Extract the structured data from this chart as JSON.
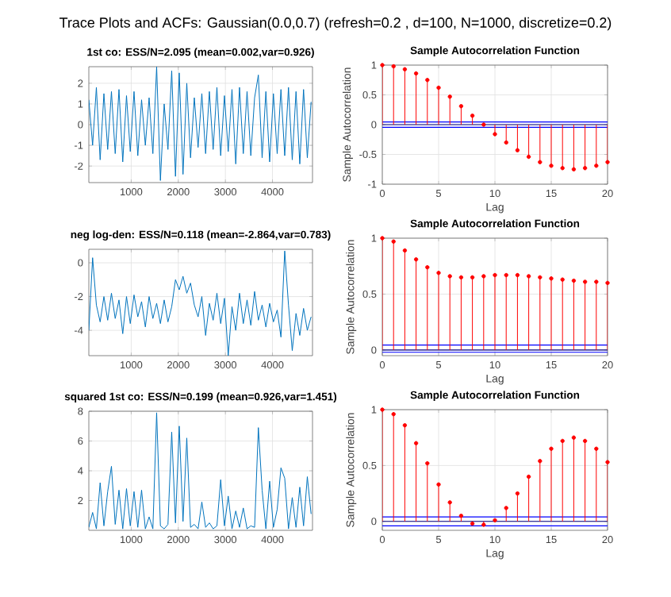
{
  "chart_data": [
    {
      "type": "line",
      "title": "1st co: ESS/N=2.095 (mean=0.002,var=0.926)",
      "annotations": [
        "Trace Plots and ACFs: Gaussian(0.0,0.7) (refresh=0.2 , d=100, N=1000, discretize=0.2)"
      ],
      "color": "#0072bd",
      "grid": true,
      "x": [
        100,
        180,
        260,
        340,
        420,
        500,
        580,
        660,
        740,
        820,
        900,
        980,
        1060,
        1140,
        1220,
        1300,
        1380,
        1460,
        1540,
        1620,
        1700,
        1780,
        1860,
        1940,
        2020,
        2100,
        2180,
        2260,
        2340,
        2420,
        2500,
        2580,
        2660,
        2740,
        2820,
        2900,
        2980,
        3060,
        3140,
        3220,
        3300,
        3380,
        3460,
        3540,
        3620,
        3700,
        3780,
        3860,
        3940,
        4020,
        4100,
        4180,
        4260,
        4340,
        4420,
        4500,
        4580,
        4660,
        4740,
        4820
      ],
      "values": [
        1.2,
        -1.0,
        1.8,
        -1.7,
        1.5,
        -1.2,
        1.6,
        -1.4,
        1.7,
        -1.8,
        1.4,
        -1.3,
        1.6,
        -1.5,
        1.2,
        -1.0,
        1.3,
        -1.4,
        2.8,
        -2.7,
        1.0,
        -1.2,
        2.6,
        -2.5,
        2.5,
        -2.4,
        2.0,
        -1.6,
        1.3,
        -1.1,
        1.5,
        -1.4,
        1.6,
        -1.2,
        1.8,
        -1.5,
        1.4,
        -1.3,
        1.7,
        -1.9,
        1.8,
        -1.4,
        1.6,
        -1.5,
        1.3,
        2.4,
        -1.6,
        1.6,
        -1.8,
        1.5,
        -1.4,
        1.7,
        -1.5,
        1.8,
        -1.7,
        1.6,
        -1.9,
        1.7,
        -1.6,
        1.1
      ],
      "xlim": [
        100,
        4850
      ],
      "xticks": [
        1000,
        2000,
        3000,
        4000
      ],
      "ylim": [
        -2.8,
        2.8
      ],
      "yticks": [
        -2,
        -1,
        0,
        1,
        2
      ]
    },
    {
      "type": "lollipop",
      "title": "Sample Autocorrelation Function",
      "xlabel": "Lag",
      "ylabel": "Sample Autocorrelation",
      "color": "#ff0000",
      "marker": "circle",
      "grid": true,
      "x": [
        0,
        1,
        2,
        3,
        4,
        5,
        6,
        7,
        8,
        9,
        10,
        11,
        12,
        13,
        14,
        15,
        16,
        17,
        18,
        19,
        20
      ],
      "values": [
        1,
        0.98,
        0.93,
        0.86,
        0.75,
        0.62,
        0.47,
        0.31,
        0.15,
        0.0,
        -0.16,
        -0.3,
        -0.43,
        -0.54,
        -0.63,
        -0.69,
        -0.73,
        -0.75,
        -0.73,
        -0.69,
        -0.63
      ],
      "xlim": [
        0,
        20
      ],
      "xticks": [
        0,
        5,
        10,
        15,
        20
      ],
      "ylim": [
        -1,
        1
      ],
      "yticks": [
        -1,
        -0.5,
        0,
        0.5,
        1
      ],
      "ref_lines": [
        {
          "axis": "y",
          "value": 0.045,
          "color": "#0000ff"
        },
        {
          "axis": "y",
          "value": 0,
          "color": "#000080"
        },
        {
          "axis": "y",
          "value": -0.045,
          "color": "#0000ff"
        }
      ]
    },
    {
      "type": "line",
      "title": "neg log-den: ESS/N=0.118 (mean=-2.864,var=0.783)",
      "color": "#0072bd",
      "grid": true,
      "x": [
        100,
        180,
        260,
        340,
        420,
        500,
        580,
        660,
        740,
        820,
        900,
        980,
        1060,
        1140,
        1220,
        1300,
        1380,
        1460,
        1540,
        1620,
        1700,
        1780,
        1860,
        1940,
        2020,
        2100,
        2180,
        2260,
        2340,
        2420,
        2500,
        2580,
        2660,
        2740,
        2820,
        2900,
        2980,
        3060,
        3140,
        3220,
        3300,
        3380,
        3460,
        3540,
        3620,
        3700,
        3780,
        3860,
        3940,
        4020,
        4100,
        4180,
        4260,
        4340,
        4420,
        4500,
        4580,
        4660,
        4740,
        4820
      ],
      "values": [
        -4.0,
        0.3,
        -2.5,
        -3.5,
        -2.0,
        -3.4,
        -1.8,
        -3.3,
        -2.2,
        -4.2,
        -2.0,
        -3.6,
        -1.9,
        -3.2,
        -2.3,
        -3.8,
        -2.0,
        -3.3,
        -2.4,
        -3.6,
        -2.2,
        -3.5,
        -2.6,
        -1.0,
        -1.6,
        -0.8,
        -1.8,
        -1.2,
        -2.5,
        -3.2,
        -2.0,
        -4.3,
        -2.4,
        -3.4,
        -1.8,
        -3.6,
        -2.1,
        -5.5,
        -2.6,
        -4.0,
        -1.8,
        -3.6,
        -2.2,
        -3.7,
        -1.7,
        -3.4,
        -2.5,
        -3.8,
        -2.4,
        -3.5,
        -2.8,
        -4.4,
        0.7,
        -2.5,
        -5.2,
        -3.0,
        -4.3,
        -2.7,
        -4.0,
        -3.2
      ],
      "xlim": [
        100,
        4850
      ],
      "xticks": [
        1000,
        2000,
        3000,
        4000
      ],
      "ylim": [
        -5.5,
        0.8
      ],
      "yticks": [
        -4,
        -2,
        0
      ]
    },
    {
      "type": "lollipop",
      "title": "Sample Autocorrelation Function",
      "xlabel": "Lag",
      "ylabel": "Sample Autocorrelation",
      "color": "#ff0000",
      "marker": "circle",
      "grid": true,
      "x": [
        0,
        1,
        2,
        3,
        4,
        5,
        6,
        7,
        8,
        9,
        10,
        11,
        12,
        13,
        14,
        15,
        16,
        17,
        18,
        19,
        20
      ],
      "values": [
        1,
        0.97,
        0.89,
        0.81,
        0.74,
        0.69,
        0.66,
        0.65,
        0.65,
        0.66,
        0.67,
        0.67,
        0.67,
        0.66,
        0.65,
        0.64,
        0.63,
        0.62,
        0.61,
        0.61,
        0.6
      ],
      "xlim": [
        0,
        20
      ],
      "xticks": [
        0,
        5,
        10,
        15,
        20
      ],
      "ylim": [
        -0.05,
        1
      ],
      "yticks": [
        0,
        0.5,
        1
      ],
      "ref_lines": [
        {
          "axis": "y",
          "value": 0.045,
          "color": "#0000ff"
        },
        {
          "axis": "y",
          "value": 0,
          "color": "#000080"
        },
        {
          "axis": "y",
          "value": -0.02,
          "color": "#0000ff"
        }
      ]
    },
    {
      "type": "line",
      "title": "squared 1st co: ESS/N=0.199 (mean=0.926,var=1.451)",
      "color": "#0072bd",
      "grid": true,
      "x": [
        100,
        180,
        260,
        340,
        420,
        500,
        580,
        660,
        740,
        820,
        900,
        980,
        1060,
        1140,
        1220,
        1300,
        1380,
        1460,
        1540,
        1620,
        1700,
        1780,
        1860,
        1940,
        2020,
        2100,
        2180,
        2260,
        2340,
        2420,
        2500,
        2580,
        2660,
        2740,
        2820,
        2900,
        2980,
        3060,
        3140,
        3220,
        3300,
        3380,
        3460,
        3540,
        3620,
        3700,
        3780,
        3860,
        3940,
        4020,
        4100,
        4180,
        4260,
        4340,
        4420,
        4500,
        4580,
        4660,
        4740,
        4820
      ],
      "values": [
        0.2,
        1.2,
        0.1,
        3.2,
        0.3,
        2.6,
        4.3,
        0.4,
        2.7,
        0.1,
        2.8,
        0.3,
        2.6,
        0.2,
        2.7,
        0.1,
        0.9,
        0.1,
        7.9,
        0.3,
        0.1,
        0.4,
        6.6,
        0.5,
        7.0,
        0.6,
        6.2,
        0.2,
        0.4,
        0.1,
        1.9,
        0.2,
        0.5,
        0.1,
        0.3,
        3.4,
        0.3,
        2.3,
        0.1,
        1.3,
        0.2,
        1.5,
        0.1,
        0.3,
        0.2,
        6.9,
        2.7,
        0.1,
        3.3,
        0.2,
        1.4,
        4.2,
        3.5,
        0.1,
        2.2,
        0.2,
        2.9,
        0.3,
        3.6,
        1.1
      ],
      "xlim": [
        100,
        4850
      ],
      "xticks": [
        1000,
        2000,
        3000,
        4000
      ],
      "ylim": [
        0,
        8
      ],
      "yticks": [
        2,
        4,
        6,
        8
      ]
    },
    {
      "type": "lollipop",
      "title": "Sample Autocorrelation Function",
      "xlabel": "Lag",
      "ylabel": "Sample Autocorrelation",
      "color": "#ff0000",
      "marker": "circle",
      "grid": true,
      "x": [
        0,
        1,
        2,
        3,
        4,
        5,
        6,
        7,
        8,
        9,
        10,
        11,
        12,
        13,
        14,
        15,
        16,
        17,
        18,
        19,
        20
      ],
      "values": [
        1,
        0.96,
        0.86,
        0.7,
        0.52,
        0.33,
        0.17,
        0.05,
        -0.02,
        -0.03,
        0.01,
        0.12,
        0.25,
        0.4,
        0.54,
        0.65,
        0.72,
        0.75,
        0.72,
        0.65,
        0.53
      ],
      "xlim": [
        0,
        20
      ],
      "xticks": [
        0,
        5,
        10,
        15,
        20
      ],
      "ylim": [
        -0.08,
        1
      ],
      "yticks": [
        0,
        0.5,
        1
      ],
      "ref_lines": [
        {
          "axis": "y",
          "value": 0.04,
          "color": "#0000ff"
        },
        {
          "axis": "y",
          "value": 0,
          "color": "#000080"
        },
        {
          "axis": "y",
          "value": -0.04,
          "color": "#0000ff"
        }
      ]
    }
  ]
}
